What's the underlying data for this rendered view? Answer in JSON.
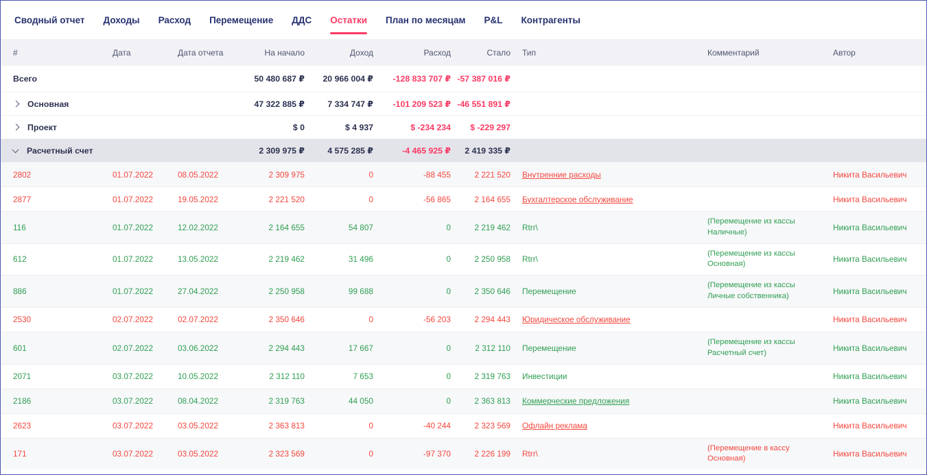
{
  "nav": {
    "tabs": [
      {
        "label": "Сводный отчет",
        "active": false
      },
      {
        "label": "Доходы",
        "active": false
      },
      {
        "label": "Расход",
        "active": false
      },
      {
        "label": "Перемещение",
        "active": false
      },
      {
        "label": "ДДС",
        "active": false
      },
      {
        "label": "Остатки",
        "active": true
      },
      {
        "label": "План по месяцам",
        "active": false
      },
      {
        "label": "P&L",
        "active": false
      },
      {
        "label": "Контрагенты",
        "active": false
      }
    ],
    "active_color": "#fb3a64",
    "inactive_color": "#273270"
  },
  "table": {
    "columns": {
      "num": "#",
      "date": "Дата",
      "report_date": "Дата отчета",
      "start": "На начало",
      "income": "Доход",
      "expense": "Расход",
      "result": "Стало",
      "type": "Тип",
      "comment": "Комментарий",
      "author": "Автор"
    },
    "status_colors": {
      "red": "#f5463d",
      "green": "#2f9e52",
      "negative": "#fb3a64"
    },
    "summary": [
      {
        "label": "Всего",
        "chevron": "none",
        "expanded": false,
        "start": "50 480 687 ₽",
        "income": "20 966 004 ₽",
        "expense": "-128 833 707 ₽",
        "result": "-57 387 016 ₽",
        "expense_neg": true,
        "result_neg": true
      },
      {
        "label": "Основная",
        "chevron": "right",
        "expanded": false,
        "start": "47 322 885 ₽",
        "income": "7 334 747 ₽",
        "expense": "-101 209 523 ₽",
        "result": "-46 551 891 ₽",
        "expense_neg": true,
        "result_neg": true
      },
      {
        "label": "Проект",
        "chevron": "right",
        "expanded": false,
        "start": "$ 0",
        "income": "$ 4 937",
        "expense": "$ -234 234",
        "result": "$ -229 297",
        "expense_neg": true,
        "result_neg": true
      },
      {
        "label": "Расчетный счет",
        "chevron": "down",
        "expanded": true,
        "start": "2 309 975 ₽",
        "income": "4 575 285 ₽",
        "expense": "-4 465 925 ₽",
        "result": "2 419 335 ₽",
        "expense_neg": true,
        "result_neg": false
      }
    ],
    "rows": [
      {
        "num": "2802",
        "date": "01.07.2022",
        "report_date": "08.05.2022",
        "start": "2 309 975",
        "income": "0",
        "expense": "-88 455",
        "result": "2 221 520",
        "type": "Внутренние расходы",
        "type_link": true,
        "comment": "",
        "author": "Никита Васильевич",
        "status": "red"
      },
      {
        "num": "2877",
        "date": "01.07.2022",
        "report_date": "19.05.2022",
        "start": "2 221 520",
        "income": "0",
        "expense": "-56 865",
        "result": "2 164 655",
        "type": "Бухгалтерское обслуживание",
        "type_link": true,
        "comment": "",
        "author": "Никита Васильевич",
        "status": "red"
      },
      {
        "num": "116",
        "date": "01.07.2022",
        "report_date": "12.02.2022",
        "start": "2 164 655",
        "income": "54 807",
        "expense": "0",
        "result": "2 219 462",
        "type": "Rtrr\\",
        "type_link": false,
        "comment": "(Перемещение из кассы Наличные)",
        "author": "Никита Васильевич",
        "status": "green"
      },
      {
        "num": "612",
        "date": "01.07.2022",
        "report_date": "13.05.2022",
        "start": "2 219 462",
        "income": "31 496",
        "expense": "0",
        "result": "2 250 958",
        "type": "Rtrr\\",
        "type_link": false,
        "comment": "(Перемещение из кассы Основная)",
        "author": "Никита Васильевич",
        "status": "green"
      },
      {
        "num": "886",
        "date": "01.07.2022",
        "report_date": "27.04.2022",
        "start": "2 250 958",
        "income": "99 688",
        "expense": "0",
        "result": "2 350 646",
        "type": "Перемещение",
        "type_link": false,
        "comment": "(Перемещение из кассы Личные собственника)",
        "author": "Никита Васильевич",
        "status": "green"
      },
      {
        "num": "2530",
        "date": "02.07.2022",
        "report_date": "02.07.2022",
        "start": "2 350 646",
        "income": "0",
        "expense": "-56 203",
        "result": "2 294 443",
        "type": "Юридическое обслуживание",
        "type_link": true,
        "comment": "",
        "author": "Никита Васильевич",
        "status": "red"
      },
      {
        "num": "601",
        "date": "02.07.2022",
        "report_date": "03.06.2022",
        "start": "2 294 443",
        "income": "17 667",
        "expense": "0",
        "result": "2 312 110",
        "type": "Перемещение",
        "type_link": false,
        "comment": "(Перемещение из кассы Расчетный счет)",
        "author": "Никита Васильевич",
        "status": "green"
      },
      {
        "num": "2071",
        "date": "03.07.2022",
        "report_date": "10.05.2022",
        "start": "2 312 110",
        "income": "7 653",
        "expense": "0",
        "result": "2 319 763",
        "type": "Инвестиции",
        "type_link": false,
        "comment": "",
        "author": "Никита Васильевич",
        "status": "green"
      },
      {
        "num": "2186",
        "date": "03.07.2022",
        "report_date": "08.04.2022",
        "start": "2 319 763",
        "income": "44 050",
        "expense": "0",
        "result": "2 363 813",
        "type": "Коммерческие предложения",
        "type_link": true,
        "comment": "",
        "author": "Никита Васильевич",
        "status": "green"
      },
      {
        "num": "2623",
        "date": "03.07.2022",
        "report_date": "03.05.2022",
        "start": "2 363 813",
        "income": "0",
        "expense": "-40 244",
        "result": "2 323 569",
        "type": "Офлайн реклама",
        "type_link": true,
        "comment": "",
        "author": "Никита Васильевич",
        "status": "red"
      },
      {
        "num": "171",
        "date": "03.07.2022",
        "report_date": "03.05.2022",
        "start": "2 323 569",
        "income": "0",
        "expense": "-97 370",
        "result": "2 226 199",
        "type": "Rtrr\\",
        "type_link": false,
        "comment": "(Перемещение в кассу Основная)",
        "author": "Никита Васильевич",
        "status": "red"
      }
    ]
  }
}
